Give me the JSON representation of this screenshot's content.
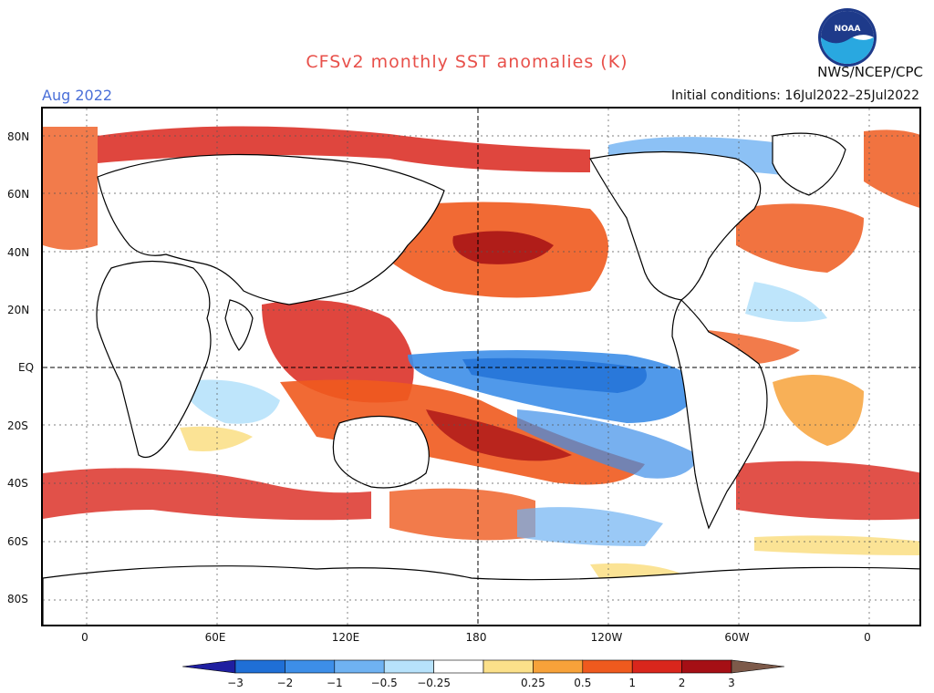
{
  "title": "CFSv2 monthly SST anomalies (K)",
  "forecast_month": "Aug 2022",
  "agency": "NWS/NCEP/CPC",
  "initial_conditions": "Initial conditions: 16Jul2022–25Jul2022",
  "logo_text": "NOAA",
  "lat_labels": [
    "80N",
    "60N",
    "40N",
    "20N",
    "EQ",
    "20S",
    "40S",
    "60S",
    "80S"
  ],
  "lon_labels": [
    "0",
    "60E",
    "120E",
    "180",
    "120W",
    "60W",
    "0"
  ],
  "colorbar": {
    "labels": [
      "−3",
      "−2",
      "−1",
      "−0.5",
      "−0.25",
      "0.25",
      "0.5",
      "1",
      "2",
      "3"
    ],
    "colors": [
      "#1f1fa0",
      "#1f6fd6",
      "#3d8ee8",
      "#6fb2f2",
      "#b7e2fb",
      "#ffffff",
      "#fbe08a",
      "#f7a23a",
      "#ef5a1e",
      "#d9261c",
      "#a50f15",
      "#7d5a4a"
    ]
  },
  "legend": {
    "type": "diverging",
    "unit": "K"
  }
}
